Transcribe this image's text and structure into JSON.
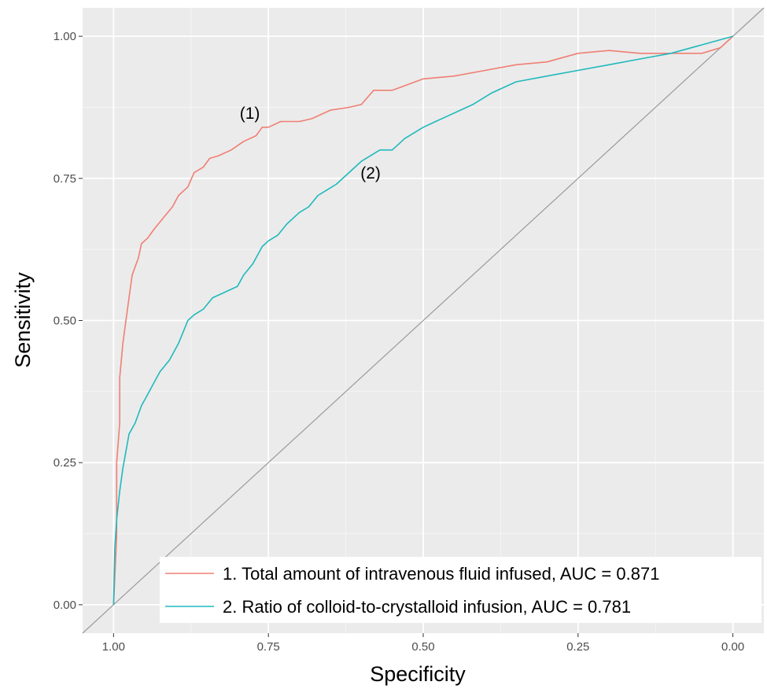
{
  "chart_data": {
    "type": "line",
    "xlabel": "Specificity",
    "ylabel": "Sensitivity",
    "x_reversed": true,
    "xlim": [
      1.05,
      -0.05
    ],
    "ylim": [
      -0.05,
      1.05
    ],
    "grid": true,
    "x_ticks": [
      1.0,
      0.75,
      0.5,
      0.25,
      0.0
    ],
    "x_tick_labels": [
      "1.00",
      "0.75",
      "0.50",
      "0.25",
      "0.00"
    ],
    "y_ticks": [
      0.0,
      0.25,
      0.5,
      0.75,
      1.0
    ],
    "y_tick_labels": [
      "0.00",
      "0.25",
      "0.50",
      "0.75",
      "1.00"
    ],
    "legend_position": "bottom-right",
    "annotations": [
      {
        "text": "(1)",
        "x": 0.78,
        "y": 0.855
      },
      {
        "text": "(2)",
        "x": 0.585,
        "y": 0.75
      }
    ],
    "series": [
      {
        "name": "1. Total amount  of intravenous fluid infused, AUC = 0.871",
        "color": "#f07f73",
        "x": [
          1.0,
          0.995,
          0.995,
          0.99,
          0.99,
          0.985,
          0.98,
          0.975,
          0.97,
          0.96,
          0.955,
          0.945,
          0.935,
          0.92,
          0.905,
          0.895,
          0.88,
          0.87,
          0.855,
          0.845,
          0.83,
          0.81,
          0.79,
          0.77,
          0.76,
          0.75,
          0.73,
          0.7,
          0.68,
          0.65,
          0.62,
          0.6,
          0.58,
          0.55,
          0.5,
          0.45,
          0.4,
          0.35,
          0.3,
          0.25,
          0.2,
          0.15,
          0.1,
          0.05,
          0.02,
          0.0
        ],
        "y": [
          0.0,
          0.12,
          0.25,
          0.32,
          0.4,
          0.46,
          0.5,
          0.54,
          0.58,
          0.61,
          0.635,
          0.645,
          0.66,
          0.68,
          0.7,
          0.72,
          0.735,
          0.76,
          0.77,
          0.785,
          0.79,
          0.8,
          0.815,
          0.825,
          0.84,
          0.84,
          0.85,
          0.85,
          0.855,
          0.87,
          0.875,
          0.88,
          0.905,
          0.905,
          0.925,
          0.93,
          0.94,
          0.95,
          0.955,
          0.97,
          0.975,
          0.97,
          0.97,
          0.97,
          0.98,
          1.0
        ]
      },
      {
        "name": "2. Ratio of colloid-to-crystalloid infusion, AUC = 0.781",
        "color": "#1fb9bd",
        "x": [
          1.0,
          0.998,
          0.995,
          0.99,
          0.985,
          0.98,
          0.975,
          0.965,
          0.955,
          0.945,
          0.935,
          0.925,
          0.91,
          0.895,
          0.88,
          0.87,
          0.855,
          0.84,
          0.82,
          0.8,
          0.79,
          0.775,
          0.76,
          0.75,
          0.735,
          0.72,
          0.7,
          0.685,
          0.67,
          0.655,
          0.64,
          0.62,
          0.6,
          0.57,
          0.55,
          0.53,
          0.5,
          0.48,
          0.46,
          0.44,
          0.42,
          0.39,
          0.35,
          0.3,
          0.25,
          0.2,
          0.15,
          0.1,
          0.05,
          0.0
        ],
        "y": [
          0.0,
          0.1,
          0.15,
          0.2,
          0.24,
          0.27,
          0.3,
          0.32,
          0.35,
          0.37,
          0.39,
          0.41,
          0.43,
          0.46,
          0.5,
          0.51,
          0.52,
          0.54,
          0.55,
          0.56,
          0.58,
          0.6,
          0.63,
          0.64,
          0.65,
          0.67,
          0.69,
          0.7,
          0.72,
          0.73,
          0.74,
          0.76,
          0.78,
          0.8,
          0.8,
          0.82,
          0.84,
          0.85,
          0.86,
          0.87,
          0.88,
          0.9,
          0.92,
          0.93,
          0.94,
          0.95,
          0.96,
          0.97,
          0.985,
          1.0
        ]
      }
    ]
  }
}
